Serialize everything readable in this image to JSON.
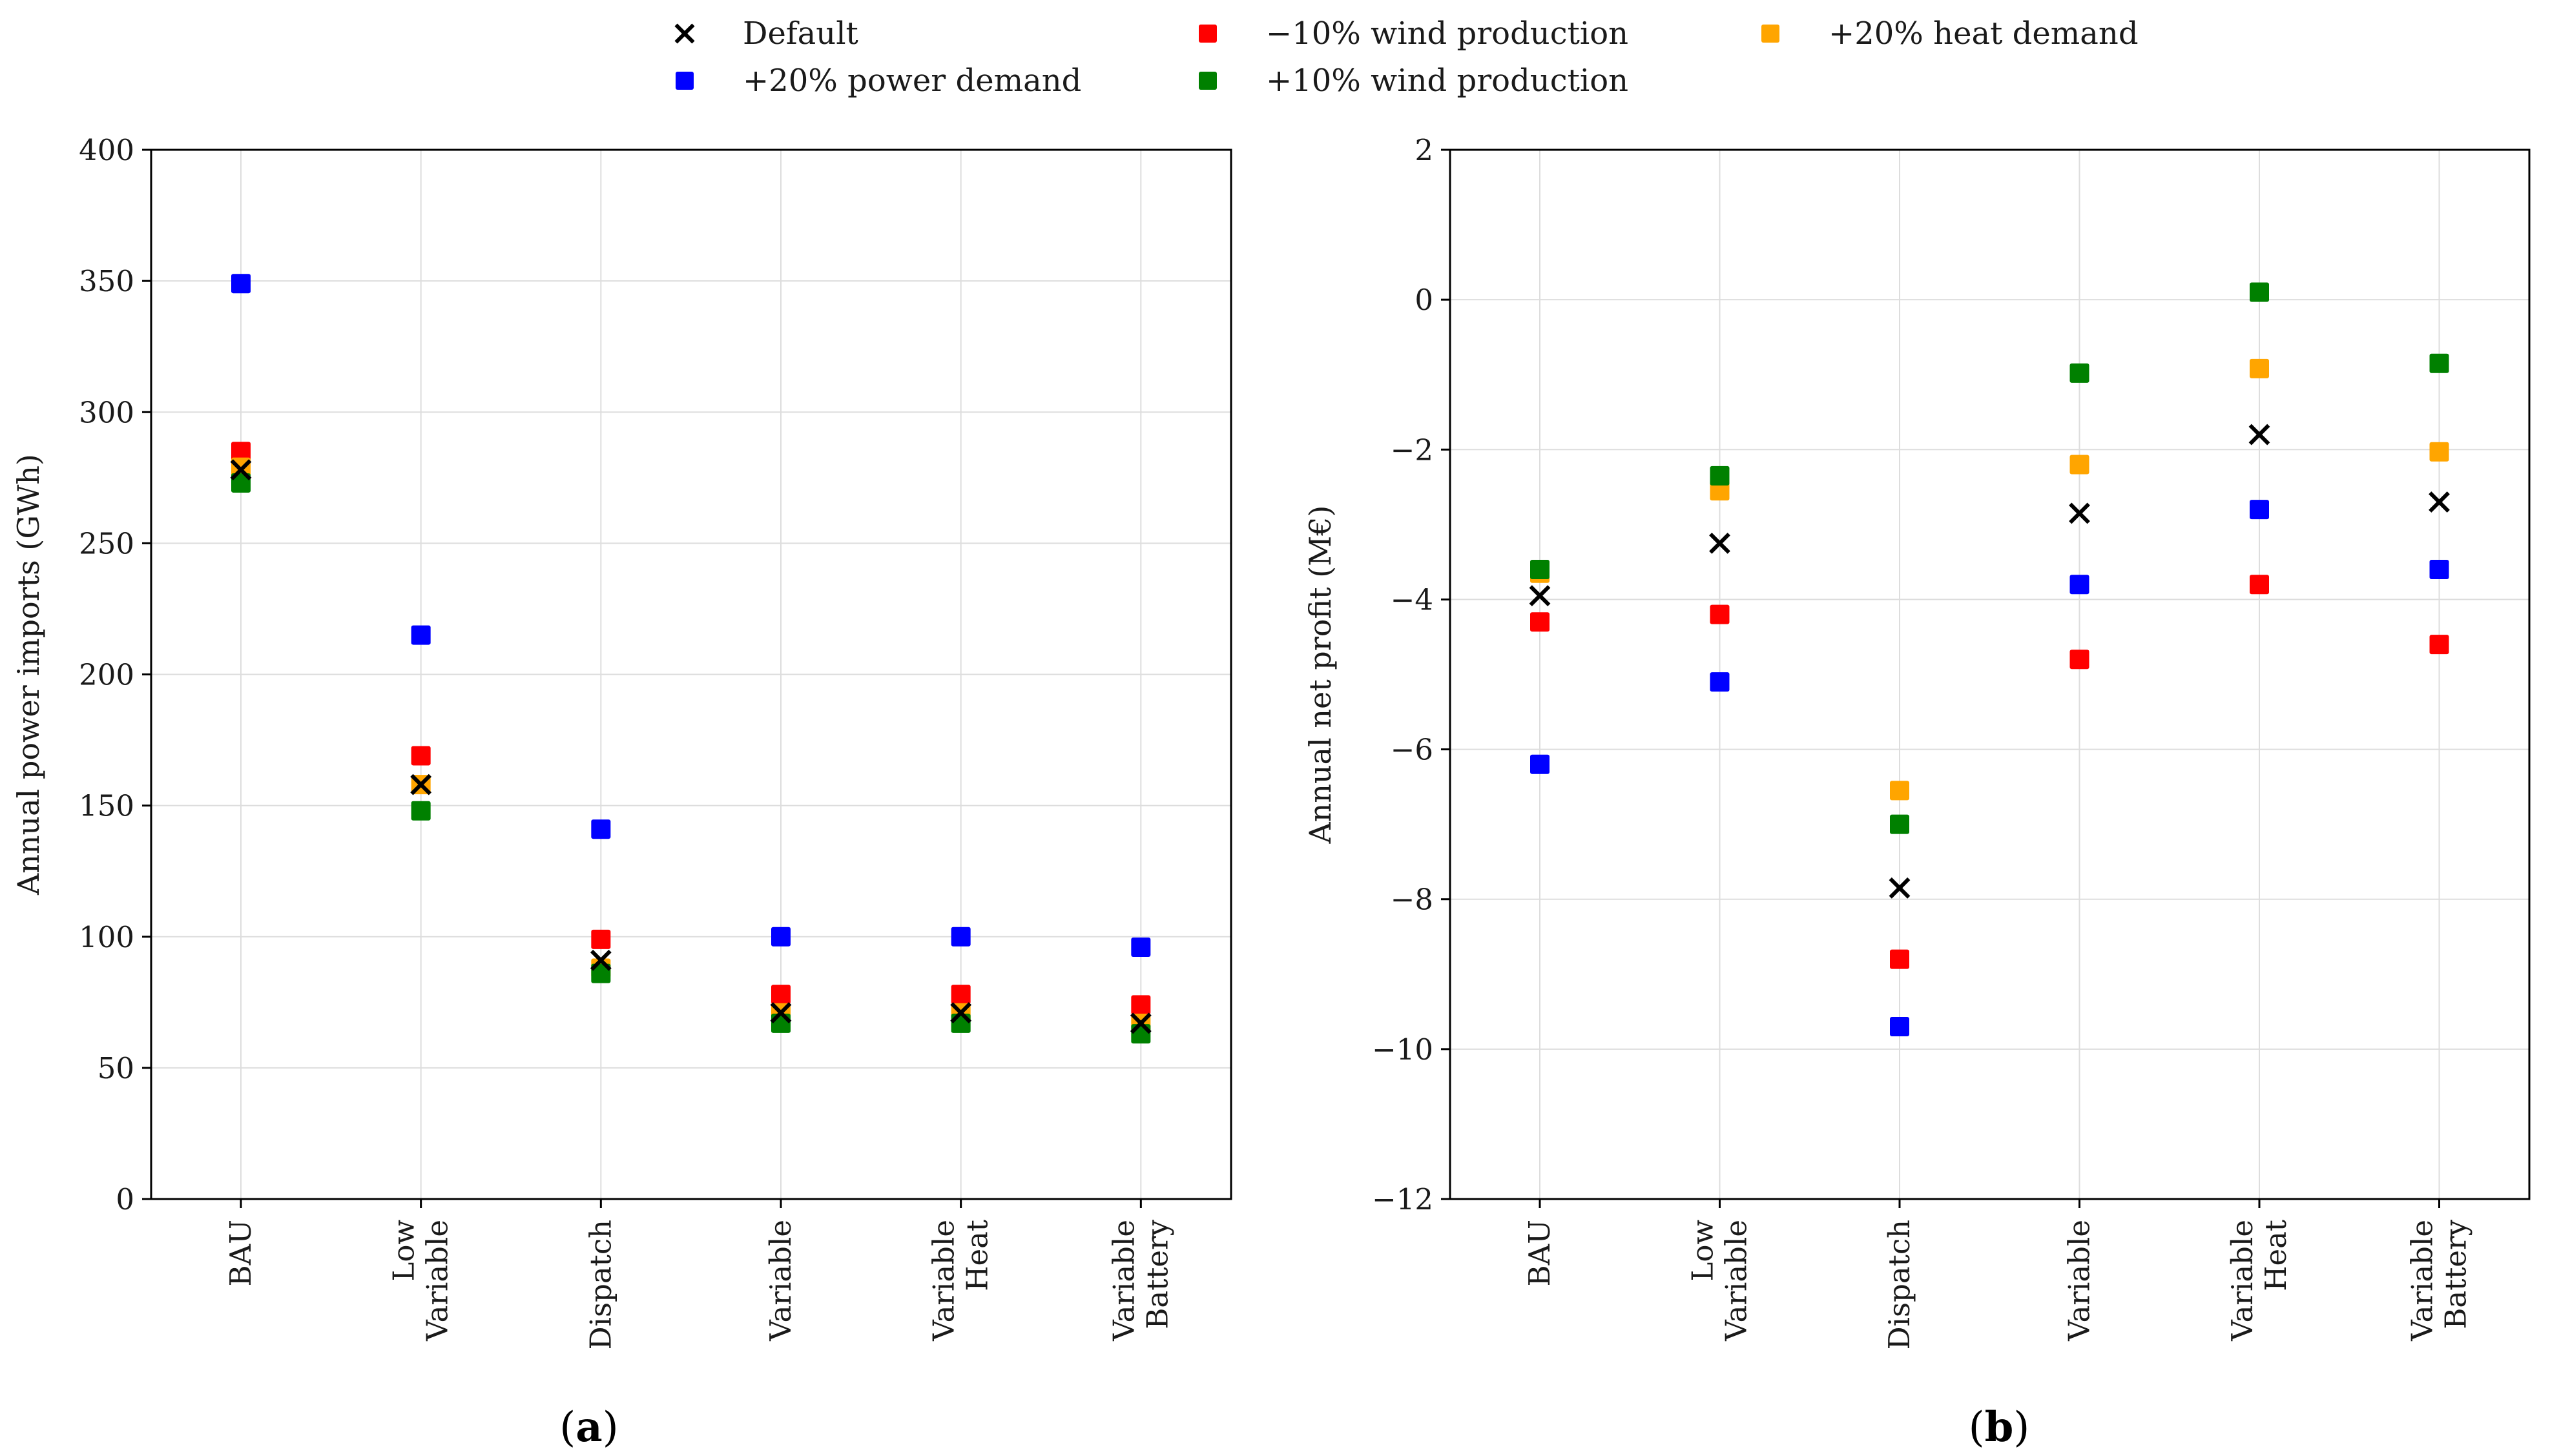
{
  "legend": [
    {
      "key": "default",
      "label": "Default",
      "color": "#000000",
      "marker": "x"
    },
    {
      "key": "wind_minus",
      "label": "−10% wind production",
      "color": "#ff0000",
      "marker": "square"
    },
    {
      "key": "heat_plus",
      "label": "+20% heat demand",
      "color": "#ffa500",
      "marker": "square"
    },
    {
      "key": "power_plus",
      "label": "+20% power demand",
      "color": "#0000ff",
      "marker": "square"
    },
    {
      "key": "wind_plus",
      "label": "+10% wind production",
      "color": "#008000",
      "marker": "square"
    }
  ],
  "chart_data": [
    {
      "type": "scatter",
      "caption": {
        "open": "(",
        "letter": "a",
        "close": ")"
      },
      "ylabel": "Annual power imports (GWh)",
      "xlabel": "",
      "ylim": [
        0,
        400
      ],
      "yticks": [
        0,
        50,
        100,
        150,
        200,
        250,
        300,
        350,
        400
      ],
      "yticklabels": [
        "0",
        "50",
        "100",
        "150",
        "200",
        "250",
        "300",
        "350",
        "400"
      ],
      "grid": true,
      "categories": [
        [
          "BAU"
        ],
        [
          "Low",
          "Variable"
        ],
        [
          "Dispatch"
        ],
        [
          "Variable"
        ],
        [
          "Variable",
          "Heat"
        ],
        [
          "Variable",
          "Battery"
        ]
      ],
      "series": [
        {
          "key": "power_plus",
          "values": [
            349,
            215,
            141,
            100,
            100,
            96
          ]
        },
        {
          "key": "wind_minus",
          "values": [
            285,
            169,
            99,
            78,
            78,
            74
          ]
        },
        {
          "key": "heat_plus",
          "values": [
            279,
            158,
            88,
            71,
            71,
            67
          ]
        },
        {
          "key": "wind_plus",
          "values": [
            273,
            148,
            86,
            67,
            67,
            63
          ]
        },
        {
          "key": "default",
          "values": [
            278,
            158,
            91,
            71,
            71,
            67
          ]
        }
      ]
    },
    {
      "type": "scatter",
      "caption": {
        "open": "(",
        "letter": "b",
        "close": ")"
      },
      "ylabel": "Annual net profit (M€)",
      "xlabel": "",
      "ylim": [
        -12,
        2
      ],
      "yticks": [
        -12,
        -10,
        -8,
        -6,
        -4,
        -2,
        0,
        2
      ],
      "yticklabels": [
        "−12",
        "−10",
        "−8",
        "−6",
        "−4",
        "−2",
        "0",
        "2"
      ],
      "grid": true,
      "categories": [
        [
          "BAU"
        ],
        [
          "Low",
          "Variable"
        ],
        [
          "Dispatch"
        ],
        [
          "Variable"
        ],
        [
          "Variable",
          "Heat"
        ],
        [
          "Variable",
          "Battery"
        ]
      ],
      "series": [
        {
          "key": "power_plus",
          "values": [
            -6.2,
            -5.1,
            -9.7,
            -3.8,
            -2.8,
            -3.6
          ]
        },
        {
          "key": "wind_minus",
          "values": [
            -4.3,
            -4.2,
            -8.8,
            -4.8,
            -3.8,
            -4.6
          ]
        },
        {
          "key": "heat_plus",
          "values": [
            -3.65,
            -2.55,
            -6.55,
            -2.2,
            -0.92,
            -2.03
          ]
        },
        {
          "key": "wind_plus",
          "values": [
            -3.6,
            -2.35,
            -7.0,
            -0.98,
            0.1,
            -0.85
          ]
        },
        {
          "key": "default",
          "values": [
            -3.95,
            -3.25,
            -7.85,
            -2.85,
            -1.8,
            -2.7
          ]
        }
      ]
    }
  ]
}
